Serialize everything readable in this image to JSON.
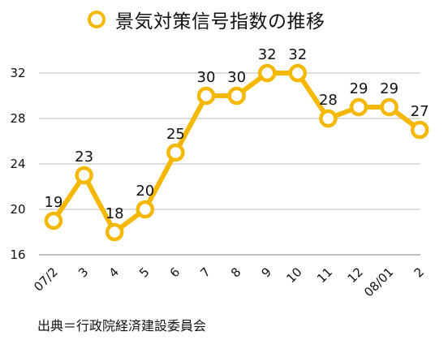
{
  "chart_data": {
    "type": "line",
    "title": "",
    "categories": [
      "07/2",
      "3",
      "4",
      "5",
      "6",
      "7",
      "8",
      "9",
      "10",
      "11",
      "12",
      "08/01",
      "2"
    ],
    "series": [
      {
        "name": "景気対策信号指数の推移",
        "values": [
          19,
          23,
          18,
          20,
          25,
          30,
          30,
          32,
          32,
          28,
          29,
          29,
          27
        ]
      }
    ],
    "y_ticks": [
      "16",
      "20",
      "24",
      "28",
      "32"
    ],
    "ylim": [
      16,
      33
    ],
    "xlabel": "",
    "ylabel": "",
    "grid": true,
    "legend_position": "top",
    "color": "#f5b800"
  },
  "source_note": "出典＝行政院経済建設委員会"
}
